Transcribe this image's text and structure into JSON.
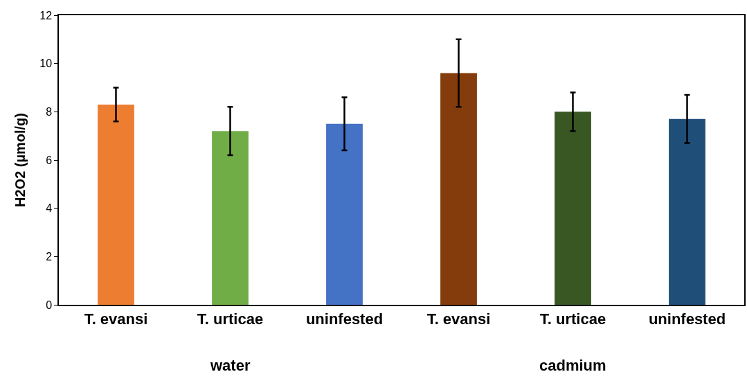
{
  "chart_data": {
    "type": "bar",
    "ylabel": "H2O2 (µmol/g)",
    "categories": [
      "T. evansi",
      "T. urticae",
      "uninfested",
      "T. evansi",
      "T. urticae",
      "uninfested"
    ],
    "values": [
      8.3,
      7.2,
      7.5,
      9.6,
      8.0,
      7.7
    ],
    "errors": [
      0.7,
      1.0,
      1.1,
      1.4,
      0.8,
      1.0
    ],
    "colors": [
      "#ed7d31",
      "#70ad47",
      "#4472c4",
      "#843c0c",
      "#385723",
      "#1f4e79"
    ],
    "ylim": [
      0,
      12
    ],
    "yticks": [
      0,
      2,
      4,
      6,
      8,
      10,
      12
    ],
    "annotations": [
      "water",
      "cadmium"
    ]
  }
}
